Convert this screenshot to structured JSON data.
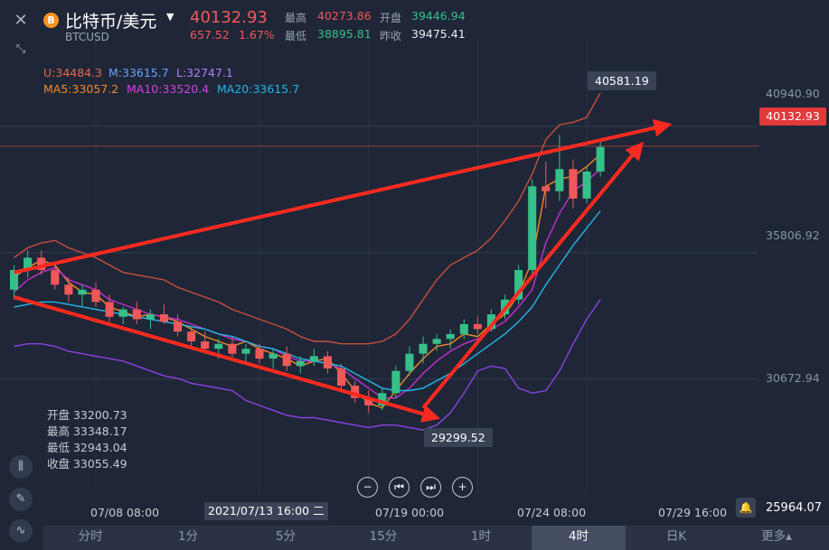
{
  "window": {
    "close_icon": "close-icon",
    "collapse_icon": "collapse-icon"
  },
  "header": {
    "coin_icon": "bitcoin-icon",
    "coin_glyph": "B",
    "title": "比特币/美元",
    "symbol": "BTCUSD",
    "price": "40132.93",
    "change": "657.52",
    "change_pct": "1.67%",
    "stats": {
      "high_label": "最高",
      "high": "40273.86",
      "open_label": "开盘",
      "open": "39446.94",
      "low_label": "最低",
      "low": "38895.81",
      "prev_close_label": "昨收",
      "prev_close": "39475.41"
    }
  },
  "indicators": {
    "boll": {
      "u": "U:34484.3",
      "m": "M:33615.7",
      "l": "L:32747.1"
    },
    "ma": {
      "ma5": "MA5:33057.2",
      "ma10": "MA10:33520.4",
      "ma20": "MA20:33615.7"
    }
  },
  "ohlc_readout": {
    "open": "开盘 33200.73",
    "high": "最高 33348.17",
    "low": "最低 32943.04",
    "close": "收盘 33055.49"
  },
  "chart": {
    "current_price_label": "40132.93",
    "high_marker": "40581.19",
    "low_marker": "29299.52",
    "y_labels": [
      "40940.90",
      "35806.92",
      "30672.94",
      "25964.07"
    ],
    "x_labels": [
      "07/08 08:00",
      "07/19 00:00",
      "07/24 08:00",
      "07/29 16:00"
    ],
    "crosshair_time": "2021/07/13 16:00 二",
    "colors": {
      "up": "#35c08a",
      "down": "#f0585a",
      "ma5": "#f08a24",
      "ma10": "#c42fd0",
      "ma20": "#23b6e6",
      "boll": "#c8503c",
      "lower": "#8a43e0",
      "annot": "#ff2a1f"
    }
  },
  "chart_data": {
    "type": "candlestick",
    "symbol": "BTCUSD",
    "interval": "4时",
    "ylim": [
      25964.07,
      43500
    ],
    "current": 40132.93,
    "high_marker": 40581.19,
    "low_marker": 29299.52,
    "series": [
      {
        "name": "MA5",
        "values": [
          34800,
          35200,
          35500,
          35300,
          34600,
          34200,
          34100,
          33600,
          33400,
          33200,
          33300,
          33200,
          33000,
          32700,
          32400,
          32200,
          32000,
          32200,
          31900,
          31700,
          31500,
          31200,
          31400,
          31500,
          30900,
          30200,
          29700,
          29500,
          30200,
          30900,
          31500,
          32000,
          32100,
          32500,
          32400,
          32900,
          33300,
          34100,
          35500,
          38500,
          38800,
          38900,
          39300,
          39800
        ]
      },
      {
        "name": "MA10",
        "values": [
          34200,
          34700,
          35000,
          35200,
          34700,
          34500,
          34300,
          33900,
          33700,
          33500,
          33300,
          33200,
          33100,
          32900,
          32700,
          32500,
          32300,
          32200,
          32000,
          31900,
          31600,
          31400,
          31400,
          31300,
          31100,
          30700,
          30300,
          29900,
          29900,
          30300,
          30900,
          31400,
          31800,
          32100,
          32300,
          32700,
          33000,
          33600,
          34300,
          36200,
          37400,
          38300,
          38700,
          39200
        ]
      },
      {
        "name": "MA20",
        "values": [
          33600,
          33700,
          33800,
          33800,
          33700,
          33600,
          33500,
          33400,
          33300,
          33200,
          33100,
          33000,
          32900,
          32800,
          32700,
          32500,
          32400,
          32200,
          32000,
          31900,
          31700,
          31500,
          31400,
          31300,
          31200,
          30900,
          30600,
          30300,
          30200,
          30200,
          30300,
          30600,
          30900,
          31300,
          31700,
          32100,
          32500,
          33000,
          33600,
          34500,
          35300,
          36100,
          36800,
          37500
        ]
      },
      {
        "name": "BOLL-U",
        "values": [
          35600,
          36000,
          36200,
          36300,
          36000,
          35800,
          35600,
          35300,
          35000,
          34900,
          34800,
          34700,
          34400,
          34200,
          34000,
          33800,
          33500,
          33300,
          33100,
          32900,
          32700,
          32400,
          32200,
          32200,
          32100,
          32100,
          32100,
          32200,
          32500,
          33100,
          33900,
          34700,
          35300,
          35600,
          35900,
          36400,
          37100,
          37900,
          39000,
          40400,
          41000,
          41100,
          41300,
          42300
        ]
      },
      {
        "name": "BOLL-L",
        "values": [
          32000,
          32100,
          32100,
          32000,
          31800,
          31700,
          31600,
          31500,
          31400,
          31200,
          31000,
          30800,
          30700,
          30500,
          30400,
          30300,
          30200,
          29800,
          29600,
          29400,
          29200,
          29100,
          29100,
          29000,
          28900,
          28800,
          28700,
          28800,
          28800,
          28700,
          28600,
          28800,
          29300,
          30100,
          31000,
          31200,
          31100,
          30300,
          30100,
          30200,
          31000,
          32100,
          33100,
          33900
        ]
      }
    ],
    "candles": [
      [
        34300,
        35300,
        33900,
        35100
      ],
      [
        35100,
        35900,
        34800,
        35600
      ],
      [
        35600,
        35900,
        34900,
        35100
      ],
      [
        35100,
        35400,
        34300,
        34500
      ],
      [
        34500,
        34800,
        33800,
        34100
      ],
      [
        34100,
        34500,
        33600,
        34300
      ],
      [
        34300,
        34600,
        33600,
        33800
      ],
      [
        33800,
        34100,
        33000,
        33200
      ],
      [
        33200,
        33600,
        32900,
        33500
      ],
      [
        33500,
        33800,
        32900,
        33100
      ],
      [
        33100,
        33500,
        32700,
        33300
      ],
      [
        33300,
        33700,
        32900,
        33000
      ],
      [
        33000,
        33300,
        32400,
        32600
      ],
      [
        32600,
        32800,
        31900,
        32200
      ],
      [
        32200,
        32600,
        31700,
        31900
      ],
      [
        31900,
        32300,
        31500,
        32100
      ],
      [
        32100,
        32400,
        31500,
        31700
      ],
      [
        31700,
        32100,
        31300,
        31900
      ],
      [
        31900,
        32100,
        31300,
        31500
      ],
      [
        31500,
        31900,
        31100,
        31700
      ],
      [
        31700,
        32000,
        31000,
        31200
      ],
      [
        31200,
        31600,
        30900,
        31400
      ],
      [
        31400,
        31900,
        31200,
        31600
      ],
      [
        31600,
        31800,
        30900,
        31100
      ],
      [
        31100,
        31300,
        30200,
        30400
      ],
      [
        30400,
        30600,
        29700,
        29900
      ],
      [
        29900,
        30200,
        29300,
        29600
      ],
      [
        29600,
        30300,
        29400,
        30100
      ],
      [
        30100,
        31200,
        29900,
        31000
      ],
      [
        31000,
        32000,
        30800,
        31700
      ],
      [
        31700,
        32400,
        31300,
        32100
      ],
      [
        32100,
        32500,
        31800,
        32300
      ],
      [
        32300,
        32700,
        31900,
        32500
      ],
      [
        32500,
        33100,
        32300,
        32900
      ],
      [
        32900,
        33200,
        32500,
        32700
      ],
      [
        32700,
        33500,
        32600,
        33300
      ],
      [
        33300,
        34100,
        33100,
        33900
      ],
      [
        33900,
        35300,
        33700,
        35100
      ],
      [
        35100,
        38800,
        34900,
        38500
      ],
      [
        38500,
        39500,
        37600,
        38300
      ],
      [
        38300,
        40581,
        37900,
        39200
      ],
      [
        39200,
        39600,
        37600,
        38000
      ],
      [
        38000,
        39300,
        37800,
        39100
      ],
      [
        39100,
        40300,
        38900,
        40100
      ]
    ],
    "annotations": [
      {
        "type": "arrow",
        "from": [
          0,
          35000
        ],
        "to": [
          48,
          41000
        ],
        "color": "#ff2a1f"
      },
      {
        "type": "arrow",
        "from": [
          0,
          34000
        ],
        "to": [
          31,
          29100
        ],
        "color": "#ff2a1f"
      },
      {
        "type": "arrow",
        "from": [
          30,
          29500
        ],
        "to": [
          46,
          40200
        ],
        "color": "#ff2a1f"
      }
    ]
  },
  "nav": {
    "zoom_out_icon": "zoom-out-icon",
    "rewind_icon": "skip-back-icon",
    "forward_icon": "skip-forward-icon",
    "zoom_in_icon": "zoom-in-icon"
  },
  "left_tools": {
    "indicator_icon": "candle-icon",
    "draw_icon": "pencil-icon",
    "chart_type_icon": "line-chart-icon"
  },
  "bottom_right": {
    "bell_icon": "bell-icon"
  },
  "tabs": [
    {
      "label": "分时",
      "active": false
    },
    {
      "label": "1分",
      "active": false
    },
    {
      "label": "5分",
      "active": false
    },
    {
      "label": "15分",
      "active": false
    },
    {
      "label": "1时",
      "active": false
    },
    {
      "label": "4时",
      "active": true
    },
    {
      "label": "日K",
      "active": false
    },
    {
      "label": "更多▴",
      "active": false
    }
  ]
}
